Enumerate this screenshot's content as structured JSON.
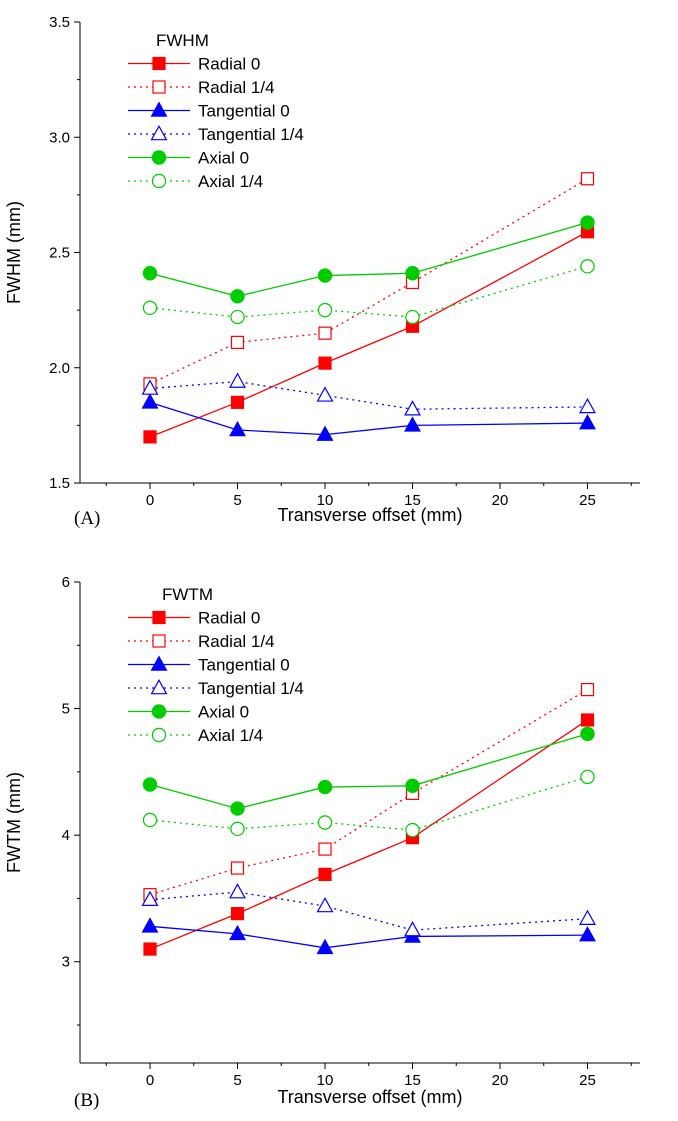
{
  "chart_data": [
    {
      "type": "line",
      "panel_label": "(A)",
      "legend_title": "FWHM",
      "legend_position": "top-left",
      "xlabel": "Transverse offset (mm)",
      "ylabel": "FWHM (mm)",
      "xlim": [
        -4,
        28
      ],
      "ylim": [
        1.5,
        3.5
      ],
      "x_ticks": [
        0,
        5,
        10,
        15,
        20,
        25
      ],
      "y_ticks": [
        1.5,
        2.0,
        2.5,
        3.0,
        3.5
      ],
      "y_tick_labels": [
        "1.5",
        "2.0",
        "2.5",
        "3.0",
        "3.5"
      ],
      "grid": false,
      "series": [
        {
          "name": "Radial 0",
          "color": "#ff0000",
          "marker": "square",
          "filled": true,
          "dashed": false,
          "x": [
            0,
            5,
            10,
            15,
            25
          ],
          "values": [
            1.7,
            1.85,
            2.02,
            2.18,
            2.59
          ]
        },
        {
          "name": "Radial 1/4",
          "color": "#ff0000",
          "marker": "square",
          "filled": false,
          "dashed": true,
          "x": [
            0,
            5,
            10,
            15,
            25
          ],
          "values": [
            1.93,
            2.11,
            2.15,
            2.37,
            2.82
          ]
        },
        {
          "name": "Tangential 0",
          "color": "#0000ff",
          "marker": "triangle",
          "filled": true,
          "dashed": false,
          "x": [
            0,
            5,
            10,
            15,
            25
          ],
          "values": [
            1.85,
            1.73,
            1.71,
            1.75,
            1.76
          ]
        },
        {
          "name": "Tangential 1/4",
          "color": "#0000ff",
          "marker": "triangle",
          "filled": false,
          "dashed": true,
          "x": [
            0,
            5,
            10,
            15,
            25
          ],
          "values": [
            1.91,
            1.94,
            1.88,
            1.82,
            1.83
          ]
        },
        {
          "name": "Axial 0",
          "color": "#00cc00",
          "marker": "circle",
          "filled": true,
          "dashed": false,
          "x": [
            0,
            5,
            10,
            15,
            25
          ],
          "values": [
            2.41,
            2.31,
            2.4,
            2.41,
            2.63
          ]
        },
        {
          "name": "Axial 1/4",
          "color": "#00cc00",
          "marker": "circle",
          "filled": false,
          "dashed": true,
          "x": [
            0,
            5,
            10,
            15,
            25
          ],
          "values": [
            2.26,
            2.22,
            2.25,
            2.22,
            2.44
          ]
        }
      ]
    },
    {
      "type": "line",
      "panel_label": "(B)",
      "legend_title": "FWTM",
      "legend_position": "top-left",
      "xlabel": "Transverse offset (mm)",
      "ylabel": "FWTM (mm)",
      "xlim": [
        -4,
        28
      ],
      "ylim": [
        2.2,
        6
      ],
      "x_ticks": [
        0,
        5,
        10,
        15,
        20,
        25
      ],
      "y_ticks": [
        3,
        4,
        5,
        6
      ],
      "y_tick_labels": [
        "3",
        "4",
        "5",
        "6"
      ],
      "grid": false,
      "series": [
        {
          "name": "Radial 0",
          "color": "#ff0000",
          "marker": "square",
          "filled": true,
          "dashed": false,
          "x": [
            0,
            5,
            10,
            15,
            25
          ],
          "values": [
            3.1,
            3.38,
            3.69,
            3.98,
            4.91
          ]
        },
        {
          "name": "Radial 1/4",
          "color": "#ff0000",
          "marker": "square",
          "filled": false,
          "dashed": true,
          "x": [
            0,
            5,
            10,
            15,
            25
          ],
          "values": [
            3.53,
            3.74,
            3.89,
            4.33,
            5.15
          ]
        },
        {
          "name": "Tangential 0",
          "color": "#0000ff",
          "marker": "triangle",
          "filled": true,
          "dashed": false,
          "x": [
            0,
            5,
            10,
            15,
            25
          ],
          "values": [
            3.28,
            3.22,
            3.11,
            3.2,
            3.21
          ]
        },
        {
          "name": "Tangential 1/4",
          "color": "#0000ff",
          "marker": "triangle",
          "filled": false,
          "dashed": true,
          "x": [
            0,
            5,
            10,
            15,
            25
          ],
          "values": [
            3.49,
            3.55,
            3.44,
            3.25,
            3.34
          ]
        },
        {
          "name": "Axial 0",
          "color": "#00cc00",
          "marker": "circle",
          "filled": true,
          "dashed": false,
          "x": [
            0,
            5,
            10,
            15,
            25
          ],
          "values": [
            4.4,
            4.21,
            4.38,
            4.39,
            4.8
          ]
        },
        {
          "name": "Axial 1/4",
          "color": "#00cc00",
          "marker": "circle",
          "filled": false,
          "dashed": true,
          "x": [
            0,
            5,
            10,
            15,
            25
          ],
          "values": [
            4.12,
            4.05,
            4.1,
            4.04,
            4.46
          ]
        }
      ]
    }
  ]
}
